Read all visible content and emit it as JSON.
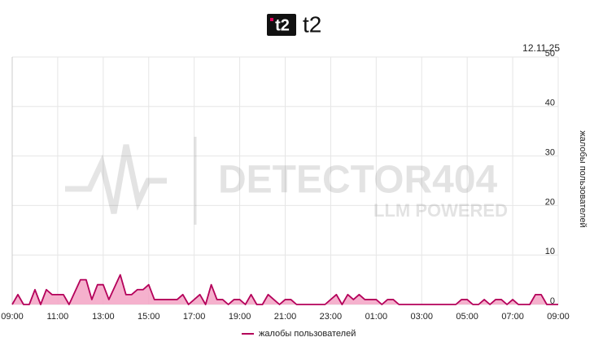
{
  "chart_data": {
    "type": "area",
    "title": "t2",
    "date": "12.11.25",
    "y_label": "жалобы пользователей",
    "watermark": [
      "DETECTOR404",
      "LLM POWERED"
    ],
    "series": [
      {
        "name": "жалобы пользователей",
        "color": "#b4005a",
        "fill": "#f3a3c4",
        "x": [
          0,
          0.25,
          0.5,
          0.75,
          1,
          1.25,
          1.5,
          1.75,
          2.25,
          2.5,
          3,
          3.25,
          3.5,
          3.75,
          4,
          4.25,
          4.75,
          5,
          5.25,
          5.5,
          5.75,
          6,
          6.25,
          7.25,
          7.5,
          7.75,
          8.25,
          8.5,
          8.75,
          9,
          9.25,
          9.5,
          9.75,
          10,
          10.25,
          10.5,
          10.75,
          11,
          11.25,
          11.5,
          11.75,
          12,
          12.25,
          12.5,
          13.75,
          14.25,
          14.5,
          14.75,
          15,
          15.25,
          15.5,
          16,
          16.25,
          16.5,
          16.75,
          17,
          19.5,
          19.75,
          20,
          20.25,
          20.5,
          20.75,
          21,
          21.25,
          21.5,
          21.75,
          22,
          22.25,
          22.75,
          23,
          23.25,
          23.5,
          24
        ],
        "values": [
          0,
          2,
          0,
          0,
          3,
          0,
          3,
          2,
          2,
          0,
          5,
          5,
          1,
          4,
          4,
          1,
          6,
          2,
          2,
          3,
          3,
          4,
          1,
          1,
          2,
          0,
          2,
          0,
          4,
          1,
          1,
          0,
          1,
          1,
          0,
          2,
          0,
          0,
          2,
          1,
          0,
          1,
          1,
          0,
          0,
          2,
          0,
          2,
          1,
          2,
          1,
          1,
          0,
          1,
          1,
          0,
          0,
          1,
          1,
          0,
          0,
          1,
          0,
          1,
          1,
          0,
          1,
          0,
          0,
          2,
          2,
          0,
          0
        ]
      }
    ],
    "xlim": [
      0,
      24
    ],
    "xticks": [
      {
        "value": 0,
        "label": "09:00"
      },
      {
        "value": 2,
        "label": "11:00"
      },
      {
        "value": 4,
        "label": "13:00"
      },
      {
        "value": 6,
        "label": "15:00"
      },
      {
        "value": 8,
        "label": "17:00"
      },
      {
        "value": 10,
        "label": "19:00"
      },
      {
        "value": 12,
        "label": "21:00"
      },
      {
        "value": 14,
        "label": "23:00"
      },
      {
        "value": 16,
        "label": "01:00"
      },
      {
        "value": 18,
        "label": "03:00"
      },
      {
        "value": 20,
        "label": "05:00"
      },
      {
        "value": 22,
        "label": "07:00"
      },
      {
        "value": 24,
        "label": "09:00"
      }
    ],
    "ylim": [
      0,
      50
    ],
    "yticks": [
      0,
      10,
      20,
      30,
      40,
      50
    ],
    "grid": true
  }
}
